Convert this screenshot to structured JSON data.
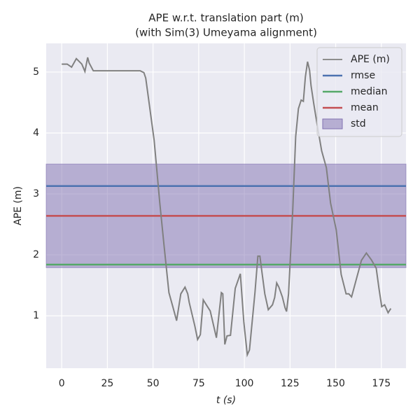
{
  "chart_data": {
    "type": "line",
    "title": [
      "APE w.r.t. translation part (m)",
      "(with Sim(3) Umeyama alignment)"
    ],
    "x_label": "t (s)",
    "y_label": "APE (m)",
    "xlim": [
      -8.5,
      188.5
    ],
    "ylim": [
      0.14,
      5.47
    ],
    "xticks": [
      0,
      25,
      50,
      75,
      100,
      125,
      150,
      175
    ],
    "yticks": [
      1,
      2,
      3,
      4,
      5
    ],
    "grid": true,
    "legend": "upper right",
    "x": [
      0,
      3,
      5.4,
      8,
      11,
      12.7,
      14.2,
      15,
      17.3,
      43,
      45,
      46,
      47.5,
      50.6,
      53.7,
      56,
      58.7,
      61,
      62.9,
      65.2,
      67.5,
      69,
      69.8,
      72.9,
      74.4,
      75.9,
      77.5,
      79.8,
      81.3,
      84.7,
      87.4,
      88.2,
      89.3,
      90.5,
      92.4,
      95,
      97.8,
      99.7,
      101.6,
      102.8,
      105.8,
      107.4,
      108.5,
      109.7,
      111.2,
      113.1,
      115.4,
      116.6,
      117.7,
      118.9,
      120.8,
      122.3,
      123.1,
      124.2,
      126.5,
      128.1,
      129.6,
      131.1,
      132.3,
      133.4,
      134.6,
      135.7,
      136.5,
      138,
      140,
      142.3,
      144.9,
      147.2,
      150.3,
      153,
      155.7,
      157.2,
      158.7,
      161.4,
      164.1,
      166.8,
      169.5,
      172.2,
      173.7,
      175.2,
      176.8,
      178.7,
      180.2
    ],
    "series": [
      {
        "name": "APE (m)",
        "color": "#808080",
        "values": [
          5.13,
          5.13,
          5.08,
          5.22,
          5.13,
          5.01,
          5.24,
          5.15,
          5.02,
          5.02,
          4.99,
          4.9,
          4.57,
          3.88,
          2.85,
          2.16,
          1.38,
          1.13,
          0.92,
          1.36,
          1.47,
          1.36,
          1.22,
          0.83,
          0.61,
          0.69,
          1.26,
          1.15,
          1.08,
          0.64,
          1.38,
          1.36,
          0.53,
          0.67,
          0.68,
          1.45,
          1.69,
          0.9,
          0.36,
          0.44,
          1.38,
          1.98,
          1.98,
          1.7,
          1.36,
          1.1,
          1.18,
          1.3,
          1.54,
          1.47,
          1.31,
          1.13,
          1.07,
          1.36,
          2.74,
          3.94,
          4.4,
          4.54,
          4.52,
          4.92,
          5.17,
          5.03,
          4.78,
          4.48,
          4.11,
          3.71,
          3.43,
          2.85,
          2.41,
          1.68,
          1.36,
          1.36,
          1.31,
          1.61,
          1.91,
          2.03,
          1.92,
          1.78,
          1.45,
          1.15,
          1.18,
          1.05,
          1.12
        ]
      }
    ],
    "stats": [
      {
        "name": "rmse",
        "value": 3.13,
        "color": "#4c72b0"
      },
      {
        "name": "median",
        "value": 1.84,
        "color": "#55a868"
      },
      {
        "name": "mean",
        "value": 2.64,
        "color": "#c44e52"
      }
    ],
    "std": {
      "name": "std",
      "value": 0.85,
      "color": "#8172b2"
    }
  }
}
